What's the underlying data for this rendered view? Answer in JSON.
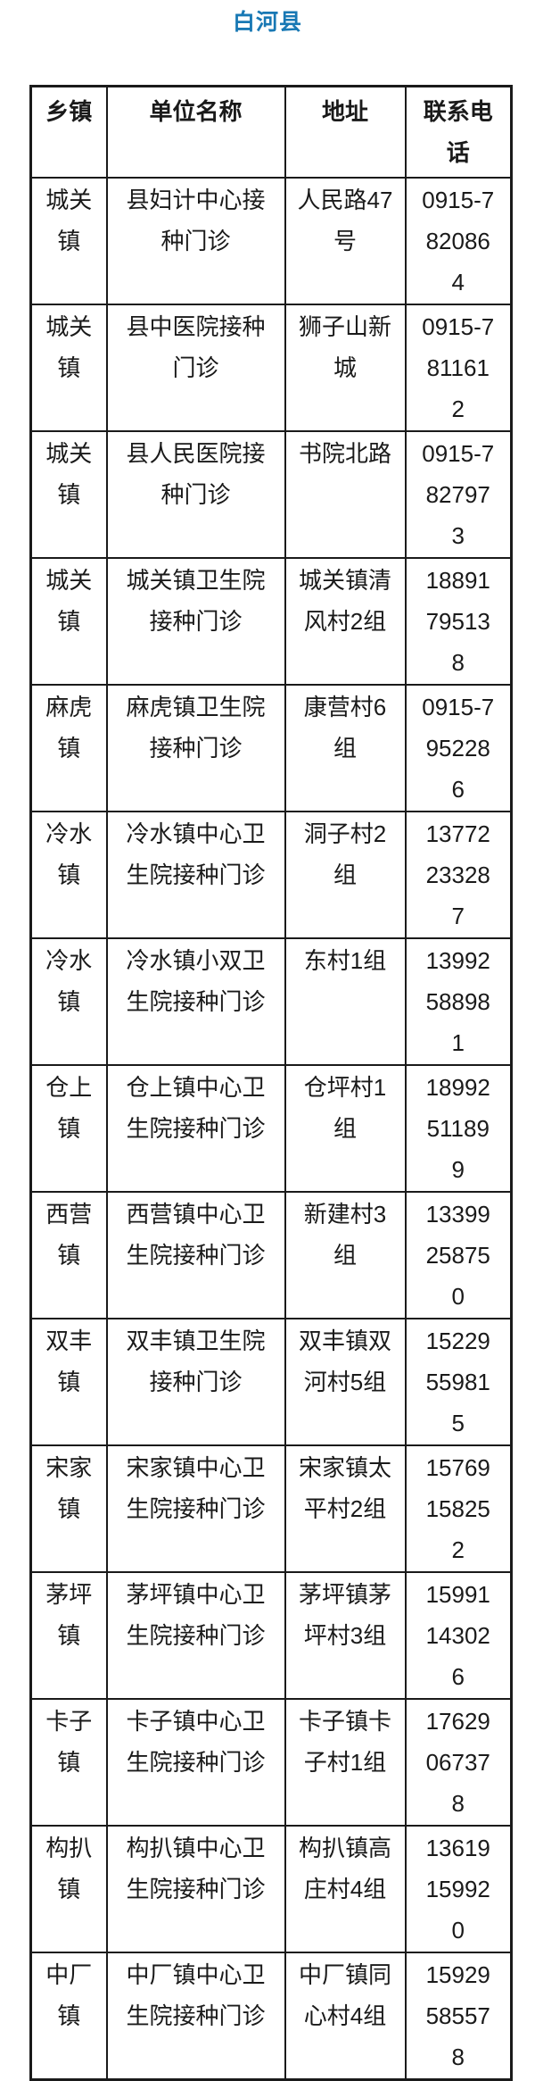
{
  "title": "白河县",
  "title_color": "#1878b4",
  "table": {
    "headers": [
      "乡镇",
      "单位名称",
      "地址",
      "联系电话"
    ],
    "rows": [
      [
        "城关镇",
        "县妇计中心接种门诊",
        "人民路47号",
        "0915-7820864"
      ],
      [
        "城关镇",
        "县中医院接种门诊",
        "狮子山新城",
        "0915-7811612"
      ],
      [
        "城关镇",
        "县人民医院接种门诊",
        "书院北路",
        "0915-7827973"
      ],
      [
        "城关镇",
        "城关镇卫生院接种门诊",
        "城关镇清风村2组",
        "18891795138"
      ],
      [
        "麻虎镇",
        "麻虎镇卫生院接种门诊",
        "康营村6组",
        "0915-7952286"
      ],
      [
        "冷水镇",
        "冷水镇中心卫生院接种门诊",
        "洞子村2组",
        "13772233287"
      ],
      [
        "冷水镇",
        "冷水镇小双卫生院接种门诊",
        "东村1组",
        "13992588981"
      ],
      [
        "仓上镇",
        "仓上镇中心卫生院接种门诊",
        "仓坪村1组",
        "18992511899"
      ],
      [
        "西营镇",
        "西营镇中心卫生院接种门诊",
        "新建村3组",
        "13399258750"
      ],
      [
        "双丰镇",
        "双丰镇卫生院接种门诊",
        "双丰镇双河村5组",
        "15229559815"
      ],
      [
        "宋家镇",
        "宋家镇中心卫生院接种门诊",
        "宋家镇太平村2组",
        "15769158252"
      ],
      [
        "茅坪镇",
        "茅坪镇中心卫生院接种门诊",
        "茅坪镇茅坪村3组",
        "15991143026"
      ],
      [
        "卡子镇",
        "卡子镇中心卫生院接种门诊",
        "卡子镇卡子村1组",
        "17629067378"
      ],
      [
        "构扒镇",
        "构扒镇中心卫生院接种门诊",
        "构扒镇高庄村4组",
        "13619159920"
      ],
      [
        "中厂镇",
        "中厂镇中心卫生院接种门诊",
        "中厂镇同心村4组",
        "15929585578"
      ]
    ]
  }
}
